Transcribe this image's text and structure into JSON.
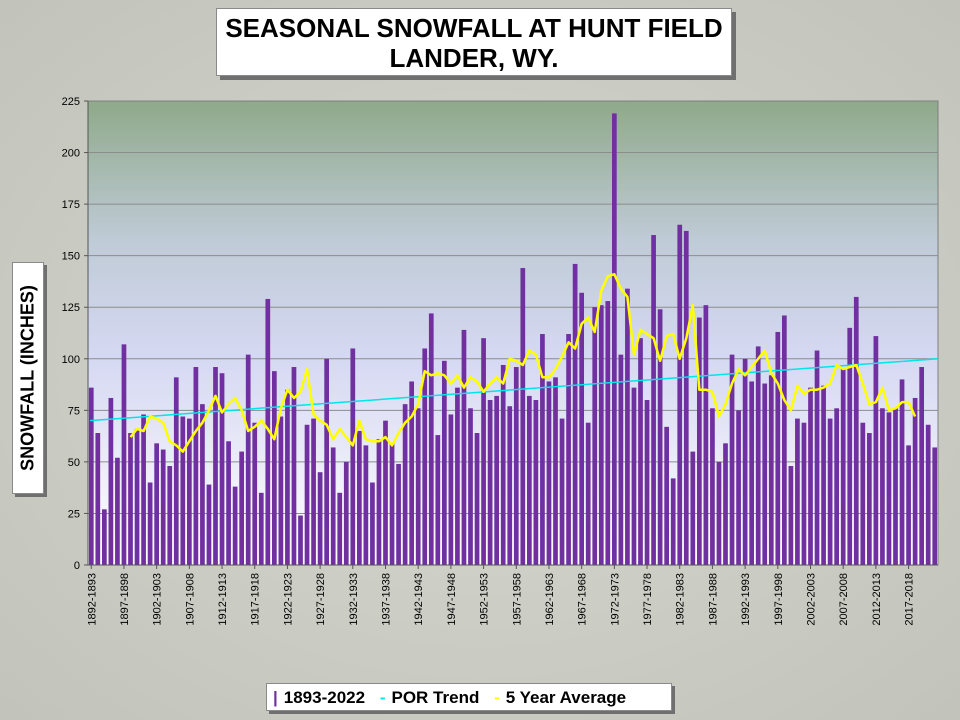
{
  "chart_data": {
    "type": "bar",
    "title": "SEASONAL SNOWFALL AT HUNT FIELD",
    "subtitle": "LANDER, WY.",
    "ylabel": "SNOWFALL (INCHES)",
    "ylim": [
      0,
      225
    ],
    "yticks": [
      0,
      25,
      50,
      75,
      100,
      125,
      150,
      175,
      200,
      225
    ],
    "start_year": 1892,
    "xtick_labels": [
      "1892-1893",
      "1897-1898",
      "1902-1903",
      "1907-1908",
      "1912-1913",
      "1917-1918",
      "1922-1923",
      "1927-1928",
      "1932-1933",
      "1937-1938",
      "1942-1943",
      "1947-1948",
      "1952-1953",
      "1957-1958",
      "1962-1963",
      "1967-1968",
      "1972-1973",
      "1977-1978",
      "1982-1983",
      "1987-1988",
      "1992-1993",
      "1997-1998",
      "2002-2003",
      "2007-2008",
      "2012-2013",
      "2017-2018"
    ],
    "grid": true,
    "legend_position": "bottom",
    "series": [
      {
        "name": "1893-2022",
        "kind": "bar",
        "color": "#7030a0",
        "values": [
          86,
          64,
          27,
          81,
          52,
          107,
          64,
          66,
          73,
          40,
          59,
          56,
          48,
          91,
          72,
          71,
          96,
          78,
          39,
          96,
          93,
          60,
          38,
          55,
          102,
          69,
          35,
          129,
          94,
          72,
          85,
          96,
          24,
          68,
          71,
          45,
          100,
          57,
          35,
          50,
          105,
          65,
          58,
          40,
          61,
          70,
          59,
          49,
          78,
          89,
          76,
          105,
          122,
          63,
          99,
          73,
          86,
          114,
          76,
          64,
          110,
          80,
          82,
          97,
          77,
          96,
          144,
          82,
          80,
          112,
          89,
          91,
          71,
          112,
          146,
          132,
          69,
          125,
          126,
          128,
          219,
          102,
          134,
          86,
          110,
          80,
          160,
          124,
          67,
          42,
          165,
          162,
          55,
          120,
          126,
          76,
          50,
          59,
          102,
          75,
          100,
          89,
          106,
          88,
          92,
          113,
          121,
          48,
          71,
          69,
          86,
          104,
          87,
          71,
          76,
          95,
          115,
          130,
          69,
          64,
          111,
          76,
          74,
          76,
          90,
          58,
          81,
          96,
          68,
          57
        ]
      },
      {
        "name": "POR Trend",
        "kind": "trend",
        "color": "#00e6e6",
        "start": 70,
        "end": 100
      },
      {
        "name": "5 Year Average",
        "kind": "line",
        "color": "#ffff00",
        "start_index": 6,
        "values": [
          62,
          66,
          65,
          72,
          71,
          69,
          60,
          58,
          55,
          60,
          65,
          69,
          75,
          82,
          74,
          78,
          81,
          75,
          65,
          67,
          70,
          66,
          61,
          76,
          85,
          81,
          84,
          95,
          73,
          70,
          68,
          61,
          66,
          62,
          58,
          70,
          61,
          60,
          60,
          62,
          58,
          64,
          69,
          72,
          78,
          94,
          92,
          93,
          92,
          88,
          92,
          86,
          91,
          89,
          84,
          88,
          91,
          88,
          100,
          99,
          97,
          104,
          102,
          91,
          91,
          95,
          101,
          108,
          105,
          117,
          120,
          113,
          133,
          140,
          141,
          134,
          130,
          102,
          114,
          112,
          110,
          99,
          111,
          112,
          100,
          110,
          126,
          85,
          85,
          84,
          72,
          78,
          88,
          95,
          92,
          96,
          100,
          104,
          93,
          88,
          80,
          75,
          87,
          83,
          85,
          85,
          86,
          88,
          97,
          95,
          96,
          97,
          88,
          78,
          79,
          86,
          75,
          76,
          79,
          79,
          72
        ]
      }
    ],
    "legend": [
      {
        "label": "1893-2022",
        "color": "#7030a0"
      },
      {
        "label": "POR Trend",
        "color": "#00e6e6"
      },
      {
        "label": "5 Year Average",
        "color": "#ffff00"
      }
    ]
  }
}
